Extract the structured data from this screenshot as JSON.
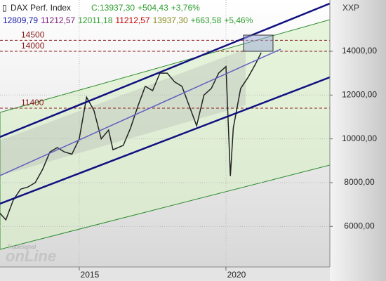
{
  "chart_data": {
    "type": "line",
    "title": "DAX Perf. Index",
    "title_values": [
      {
        "text": "C:13937,30",
        "color": "#2e9e2e"
      },
      {
        "text": "+504,43",
        "color": "#2e9e2e"
      },
      {
        "text": "+3,76%",
        "color": "#2e9e2e"
      }
    ],
    "indicator_values": [
      {
        "text": "12809,79",
        "color": "#1a1aaa"
      },
      {
        "text": "11212,57",
        "color": "#7a1a7a"
      },
      {
        "text": "12011,18",
        "color": "#2e9e2e"
      },
      {
        "text": "11212,57",
        "color": "#c00000"
      },
      {
        "text": "13937,30",
        "color": "#8a8a20"
      },
      {
        "text": "+663,58",
        "color": "#2e9e2e"
      },
      {
        "text": "+5,46%",
        "color": "#2e9e2e"
      }
    ],
    "axis_label": "XXP",
    "watermark": [
      "Tradesignal",
      "onLine"
    ],
    "series": [
      {
        "name": "DAX Perf. Index",
        "color": "#222222",
        "x": [
          2012.3,
          2012.5,
          2012.75,
          2013.0,
          2013.25,
          2013.5,
          2013.75,
          2014.0,
          2014.25,
          2014.5,
          2014.75,
          2015.0,
          2015.25,
          2015.5,
          2015.75,
          2016.0,
          2016.15,
          2016.5,
          2016.75,
          2017.0,
          2017.25,
          2017.5,
          2017.75,
          2018.0,
          2018.25,
          2018.5,
          2018.75,
          2019.0,
          2019.25,
          2019.5,
          2019.75,
          2020.0,
          2020.15,
          2020.25,
          2020.5,
          2020.75,
          2021.0,
          2021.2
        ],
        "values": [
          6600,
          6300,
          7200,
          7700,
          7800,
          8000,
          8600,
          9400,
          9600,
          9400,
          9300,
          10000,
          11900,
          11300,
          10000,
          10400,
          9500,
          9700,
          10500,
          11500,
          12400,
          12200,
          13000,
          13000,
          12600,
          12400,
          11500,
          10600,
          12000,
          12300,
          13000,
          13300,
          8300,
          10500,
          12300,
          12800,
          13400,
          13937.3
        ]
      }
    ],
    "hlines": [
      {
        "value": 14500,
        "color": "#8b1a1a"
      },
      {
        "value": 14000,
        "color": "#8b1a1a"
      },
      {
        "value": 11400,
        "color": "#8b1a1a"
      }
    ],
    "xlim": [
      2012.3,
      2023.54
    ],
    "xticks": [
      2015,
      2020
    ],
    "ylim": [
      4150,
      16340
    ],
    "yticks": [
      {
        "value": 6000,
        "label": "6000,00"
      },
      {
        "value": 8000,
        "label": "8000,00"
      },
      {
        "value": 10000,
        "label": "10000,00"
      },
      {
        "value": 12000,
        "label": "12000,00"
      },
      {
        "value": 14000,
        "label": "14000,00"
      }
    ],
    "grid": true
  }
}
